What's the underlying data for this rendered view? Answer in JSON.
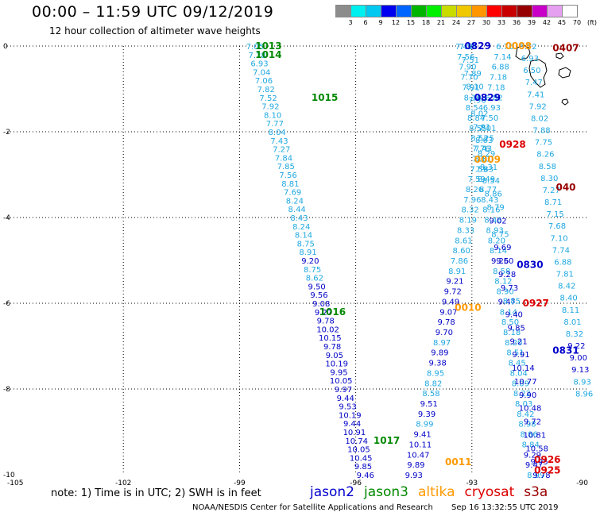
{
  "header": {
    "title": "00:00 – 11:59 UTC 09/12/2019",
    "subtitle": "12 hour collection of altimeter wave heights"
  },
  "color_scale": {
    "labels": [
      "3",
      "6",
      "9",
      "12",
      "15",
      "18",
      "21",
      "24",
      "27",
      "30",
      "33",
      "36",
      "39",
      "42",
      "45",
      "70",
      "(ft)"
    ],
    "colors": [
      "#8c8c8c",
      "#00f0f0",
      "#00c8f0",
      "#0000f0",
      "#0064ff",
      "#00b400",
      "#00f000",
      "#c8dc00",
      "#f0c800",
      "#ff9600",
      "#ff0000",
      "#c80000",
      "#960000",
      "#c800c8",
      "#e6a0f0",
      "#ffffff"
    ]
  },
  "note": "note:  1) Time is in UTC;  2) SWH is in feet",
  "legend": [
    {
      "name": "jason2",
      "color": "#0000cc"
    },
    {
      "name": "jason3",
      "color": "#008800"
    },
    {
      "name": "altika",
      "color": "#ff9900"
    },
    {
      "name": "cryosat",
      "color": "#dd0000"
    },
    {
      "name": "s3a",
      "color": "#990000"
    }
  ],
  "footer": {
    "source": "NOAA/NESDIS Center for Satellite Applications and Research",
    "timestamp": "Sep 16 13:32:55 UTC 2019"
  },
  "chart_data": {
    "type": "scatter",
    "title": "00:00 – 11:59 UTC 09/12/2019",
    "subtitle": "12 hour collection of altimeter wave heights",
    "xlim": [
      -105,
      -90
    ],
    "ylim": [
      -10,
      0
    ],
    "xticks": [
      "-105",
      "-102",
      "-99",
      "-96",
      "-93",
      "-90"
    ],
    "yticks": [
      "0",
      "-2",
      "-4",
      "-6",
      "-8",
      "-10"
    ],
    "grid": true,
    "time_labels": [
      {
        "text": "1013",
        "x": -98.25,
        "y": 0,
        "color": "#008800"
      },
      {
        "text": "1014",
        "x": -98.25,
        "y": -0.2,
        "color": "#008800"
      },
      {
        "text": "1015",
        "x": -96.8,
        "y": -1.2,
        "color": "#008800"
      },
      {
        "text": "1016",
        "x": -96.6,
        "y": -6.2,
        "color": "#008800"
      },
      {
        "text": "1017",
        "x": -95.2,
        "y": -9.2,
        "color": "#008800"
      },
      {
        "text": "0829",
        "x": -92.85,
        "y": 0,
        "color": "#0000cc"
      },
      {
        "text": "0829",
        "x": -92.6,
        "y": -1.2,
        "color": "#0000cc"
      },
      {
        "text": "0830",
        "x": -91.5,
        "y": -5.1,
        "color": "#0000cc"
      },
      {
        "text": "0831",
        "x": -90.35,
        "y": -7.1,
        "color": "#0000cc"
      },
      {
        "text": "0008",
        "x": -91.8,
        "y": 0,
        "color": "#ff9900"
      },
      {
        "text": "0009",
        "x": -92.6,
        "y": -2.65,
        "color": "#ff9900"
      },
      {
        "text": "0010",
        "x": -93.1,
        "y": -6.1,
        "color": "#ff9900"
      },
      {
        "text": "0011",
        "x": -93.35,
        "y": -9.7,
        "color": "#ff9900"
      },
      {
        "text": "0928",
        "x": -91.95,
        "y": -2.3,
        "color": "#dd0000"
      },
      {
        "text": "0927",
        "x": -91.35,
        "y": -6.0,
        "color": "#dd0000"
      },
      {
        "text": "0926",
        "x": -91.05,
        "y": -9.65,
        "color": "#dd0000"
      },
      {
        "text": "0925",
        "x": -91.05,
        "y": -9.9,
        "color": "#dd0000"
      },
      {
        "text": "0407",
        "x": -90.55,
        "y": -0.05,
        "color": "#990000"
      },
      {
        "text": "040",
        "x": -90.1,
        "y": -3.3,
        "color": "#990000"
      }
    ],
    "series": [
      {
        "name": "jason3",
        "x_start": -98.6,
        "y_start": 0,
        "x_end": -95.75,
        "y_end": -10,
        "values": [
          7.05,
          7.28,
          6.93,
          7.04,
          7.06,
          7.82,
          7.52,
          7.92,
          8.1,
          7.77,
          8.04,
          7.43,
          7.27,
          7.84,
          7.85,
          7.56,
          8.81,
          7.69,
          8.24,
          8.44,
          8.43,
          8.24,
          8.14,
          8.75,
          8.91,
          9.2,
          8.75,
          8.62,
          9.5,
          9.56,
          9.08,
          9.27,
          9.78,
          10.02,
          10.15,
          9.78,
          9.05,
          10.19,
          9.95,
          10.05,
          9.97,
          9.44,
          9.53,
          10.19,
          9.44,
          10.91,
          10.74,
          10.05,
          10.45,
          9.85,
          9.46
        ]
      },
      {
        "name": "altika",
        "x_start": -92.15,
        "y_start": 0,
        "x_end": -94.5,
        "y_end": -10,
        "values": [
          6.76,
          7.14,
          6.88,
          7.18,
          7.18,
          6.82,
          6.93,
          7.5,
          7.01,
          7.25,
          7.43,
          7.3,
          7.59,
          7.59,
          8.26,
          7.96,
          8.32,
          8.19,
          8.33,
          8.61,
          8.6,
          7.86,
          8.91,
          9.21,
          9.72,
          9.49,
          9.07,
          9.78,
          9.7,
          8.97,
          9.89,
          9.38,
          8.95,
          8.82,
          8.58,
          9.51,
          9.39,
          8.99,
          9.41,
          10.11,
          10.47,
          9.89,
          9.93
        ]
      },
      {
        "name": "cryosat",
        "x_start": -93.2,
        "y_start": 0,
        "x_end": -91.35,
        "y_end": -10,
        "values": [
          7.48,
          7.56,
          7.9,
          7.7,
          7.91,
          8.1,
          8.54,
          8.84,
          8.55,
          8.52,
          7.76,
          8.31,
          7.83,
          8.49,
          8.77,
          8.43,
          8.16,
          8.46,
          8.93,
          8.2,
          8.14,
          9.26,
          8.58,
          8.12,
          8.9,
          9.47,
          8.14,
          8.5,
          8.18,
          8.2,
          8.51,
          8.45,
          8.04,
          8.09,
          8.22,
          8.03,
          8.42,
          8.98,
          8.86,
          8.84,
          9.29,
          9.47,
          8.99
        ]
      },
      {
        "name": "jason2",
        "x_start": -93.1,
        "y_start": 0,
        "x_end": -91.2,
        "y_end": -10,
        "values": [
          7.57,
          7.51,
          7.89,
          8.1,
          7.96,
          8.02,
          7.91,
          8.03,
          8.29,
          8.31,
          8.54,
          8.86,
          8.79,
          9.02,
          8.75,
          9.69,
          9.5,
          9.28,
          9.73,
          8.85,
          9.4,
          9.85,
          9.21,
          9.91,
          10.14,
          10.77,
          9.9,
          10.48,
          9.72,
          10.81,
          10.58,
          9.95,
          9.78
        ]
      },
      {
        "name": "s3a",
        "x_start": -91.55,
        "y_start": 0,
        "x_end": -90.1,
        "y_end": -8.1,
        "values": [
          6.72,
          6.93,
          6.5,
          7.47,
          7.41,
          7.92,
          8.02,
          7.88,
          7.75,
          8.26,
          8.58,
          8.3,
          7.27,
          8.71,
          7.15,
          7.68,
          7.1,
          7.74,
          6.88,
          7.81,
          8.42,
          8.4,
          8.11,
          8.01,
          8.32,
          9.22,
          9.0,
          9.13,
          8.93,
          8.96
        ]
      }
    ]
  }
}
